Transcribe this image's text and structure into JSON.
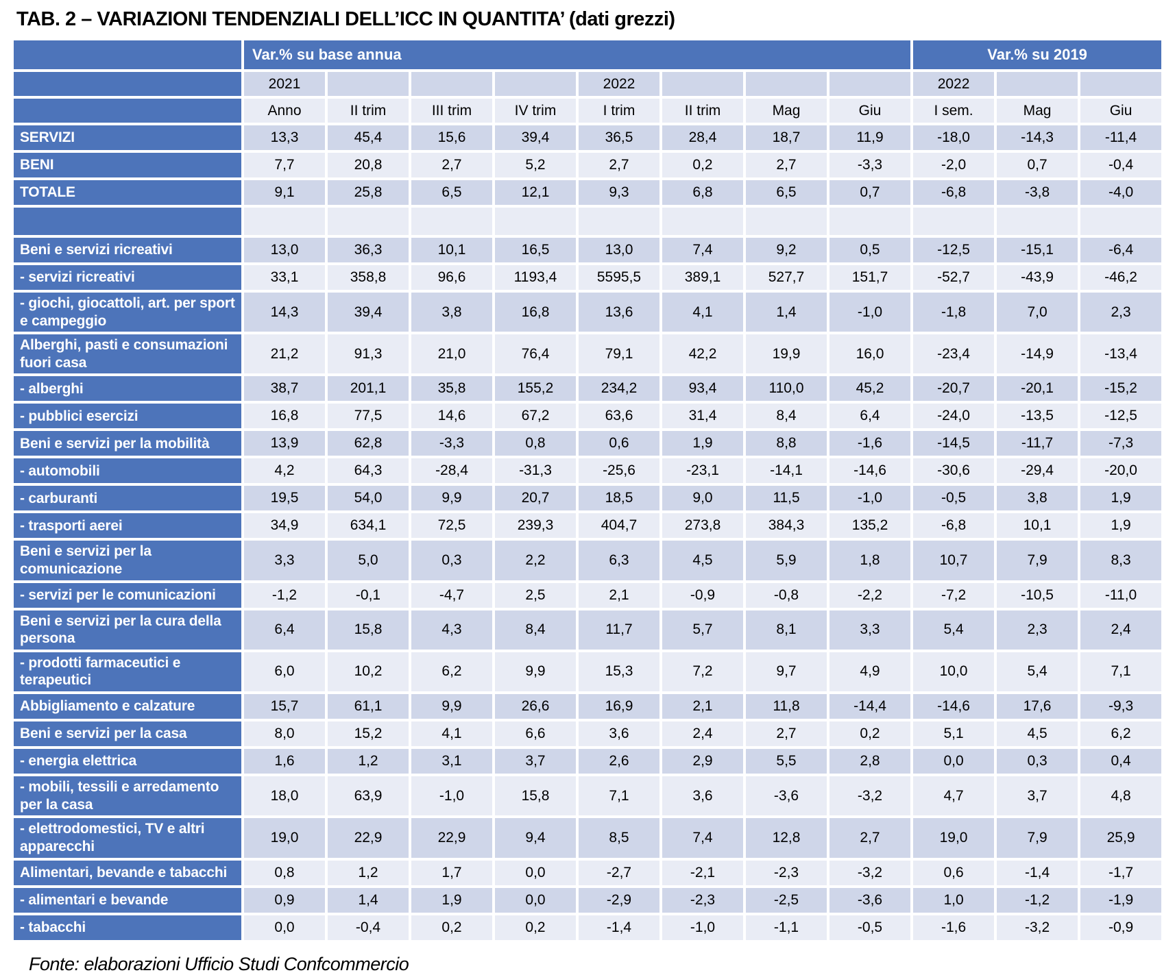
{
  "title": "TAB. 2 – VARIAZIONI TENDENZIALI DELL’ICC IN QUANTITA’ (dati grezzi)",
  "footer": "Fonte: elaborazioni Ufficio Studi Confcommercio",
  "colors": {
    "header_blue": "#4d74ba",
    "band_dark": "#cfd6e9",
    "band_light": "#e9ecf5"
  },
  "table": {
    "group_headers": [
      {
        "label": "Var.% su base annua",
        "span": 8
      },
      {
        "label": "Var.% su 2019",
        "span": 3
      }
    ],
    "year_row": [
      "2021",
      "",
      "",
      "",
      "2022",
      "",
      "",
      "",
      "2022",
      "",
      ""
    ],
    "column_headers": [
      "Anno",
      "II trim",
      "III trim",
      "IV trim",
      "I trim",
      "II trim",
      "Mag",
      "Giu",
      "I sem.",
      "Mag",
      "Giu"
    ],
    "rows": [
      {
        "label": "SERVIZI",
        "values": [
          "13,3",
          "45,4",
          "15,6",
          "39,4",
          "36,5",
          "28,4",
          "18,7",
          "11,9",
          "-18,0",
          "-14,3",
          "-11,4"
        ]
      },
      {
        "label": "BENI",
        "values": [
          "7,7",
          "20,8",
          "2,7",
          "5,2",
          "2,7",
          "0,2",
          "2,7",
          "-3,3",
          "-2,0",
          "0,7",
          "-0,4"
        ]
      },
      {
        "label": "TOTALE",
        "values": [
          "9,1",
          "25,8",
          "6,5",
          "12,1",
          "9,3",
          "6,8",
          "6,5",
          "0,7",
          "-6,8",
          "-3,8",
          "-4,0"
        ]
      },
      {
        "label": "",
        "spacer": true,
        "values": [
          "",
          "",
          "",
          "",
          "",
          "",
          "",
          "",
          "",
          "",
          ""
        ]
      },
      {
        "label": "Beni e servizi ricreativi",
        "values": [
          "13,0",
          "36,3",
          "10,1",
          "16,5",
          "13,0",
          "7,4",
          "9,2",
          "0,5",
          "-12,5",
          "-15,1",
          "-6,4"
        ]
      },
      {
        "label": "- servizi ricreativi",
        "values": [
          "33,1",
          "358,8",
          "96,6",
          "1193,4",
          "5595,5",
          "389,1",
          "527,7",
          "151,7",
          "-52,7",
          "-43,9",
          "-46,2"
        ]
      },
      {
        "label": "- giochi, giocattoli, art. per sport e campeggio",
        "values": [
          "14,3",
          "39,4",
          "3,8",
          "16,8",
          "13,6",
          "4,1",
          "1,4",
          "-1,0",
          "-1,8",
          "7,0",
          "2,3"
        ]
      },
      {
        "label": "Alberghi, pasti e consumazioni fuori casa",
        "values": [
          "21,2",
          "91,3",
          "21,0",
          "76,4",
          "79,1",
          "42,2",
          "19,9",
          "16,0",
          "-23,4",
          "-14,9",
          "-13,4"
        ]
      },
      {
        "label": "- alberghi",
        "values": [
          "38,7",
          "201,1",
          "35,8",
          "155,2",
          "234,2",
          "93,4",
          "110,0",
          "45,2",
          "-20,7",
          "-20,1",
          "-15,2"
        ]
      },
      {
        "label": "- pubblici esercizi",
        "values": [
          "16,8",
          "77,5",
          "14,6",
          "67,2",
          "63,6",
          "31,4",
          "8,4",
          "6,4",
          "-24,0",
          "-13,5",
          "-12,5"
        ]
      },
      {
        "label": "Beni e servizi per la mobilità",
        "values": [
          "13,9",
          "62,8",
          "-3,3",
          "0,8",
          "0,6",
          "1,9",
          "8,8",
          "-1,6",
          "-14,5",
          "-11,7",
          "-7,3"
        ]
      },
      {
        "label": "- automobili",
        "values": [
          "4,2",
          "64,3",
          "-28,4",
          "-31,3",
          "-25,6",
          "-23,1",
          "-14,1",
          "-14,6",
          "-30,6",
          "-29,4",
          "-20,0"
        ]
      },
      {
        "label": "- carburanti",
        "values": [
          "19,5",
          "54,0",
          "9,9",
          "20,7",
          "18,5",
          "9,0",
          "11,5",
          "-1,0",
          "-0,5",
          "3,8",
          "1,9"
        ]
      },
      {
        "label": "- trasporti aerei",
        "values": [
          "34,9",
          "634,1",
          "72,5",
          "239,3",
          "404,7",
          "273,8",
          "384,3",
          "135,2",
          "-6,8",
          "10,1",
          "1,9"
        ]
      },
      {
        "label": "Beni e servizi per la comunicazione",
        "values": [
          "3,3",
          "5,0",
          "0,3",
          "2,2",
          "6,3",
          "4,5",
          "5,9",
          "1,8",
          "10,7",
          "7,9",
          "8,3"
        ]
      },
      {
        "label": "- servizi per le comunicazioni",
        "values": [
          "-1,2",
          "-0,1",
          "-4,7",
          "2,5",
          "2,1",
          "-0,9",
          "-0,8",
          "-2,2",
          "-7,2",
          "-10,5",
          "-11,0"
        ]
      },
      {
        "label": "Beni e servizi per la cura della persona",
        "values": [
          "6,4",
          "15,8",
          "4,3",
          "8,4",
          "11,7",
          "5,7",
          "8,1",
          "3,3",
          "5,4",
          "2,3",
          "2,4"
        ]
      },
      {
        "label": "- prodotti farmaceutici e terapeutici",
        "values": [
          "6,0",
          "10,2",
          "6,2",
          "9,9",
          "15,3",
          "7,2",
          "9,7",
          "4,9",
          "10,0",
          "5,4",
          "7,1"
        ]
      },
      {
        "label": "Abbigliamento e calzature",
        "values": [
          "15,7",
          "61,1",
          "9,9",
          "26,6",
          "16,9",
          "2,1",
          "11,8",
          "-14,4",
          "-14,6",
          "17,6",
          "-9,3"
        ]
      },
      {
        "label": "Beni e servizi per la casa",
        "values": [
          "8,0",
          "15,2",
          "4,1",
          "6,6",
          "3,6",
          "2,4",
          "2,7",
          "0,2",
          "5,1",
          "4,5",
          "6,2"
        ]
      },
      {
        "label": "- energia elettrica",
        "values": [
          "1,6",
          "1,2",
          "3,1",
          "3,7",
          "2,6",
          "2,9",
          "5,5",
          "2,8",
          "0,0",
          "0,3",
          "0,4"
        ]
      },
      {
        "label": "- mobili, tessili e arredamento per la casa",
        "values": [
          "18,0",
          "63,9",
          "-1,0",
          "15,8",
          "7,1",
          "3,6",
          "-3,6",
          "-3,2",
          "4,7",
          "3,7",
          "4,8"
        ]
      },
      {
        "label": "- elettrodomestici, TV e altri apparecchi",
        "values": [
          "19,0",
          "22,9",
          "22,9",
          "9,4",
          "8,5",
          "7,4",
          "12,8",
          "2,7",
          "19,0",
          "7,9",
          "25,9"
        ]
      },
      {
        "label": "Alimentari, bevande e tabacchi",
        "values": [
          "0,8",
          "1,2",
          "1,7",
          "0,0",
          "-2,7",
          "-2,1",
          "-2,3",
          "-3,2",
          "0,6",
          "-1,4",
          "-1,7"
        ]
      },
      {
        "label": "- alimentari e bevande",
        "values": [
          "0,9",
          "1,4",
          "1,9",
          "0,0",
          "-2,9",
          "-2,3",
          "-2,5",
          "-3,6",
          "1,0",
          "-1,2",
          "-1,9"
        ]
      },
      {
        "label": "- tabacchi",
        "values": [
          "0,0",
          "-0,4",
          "0,2",
          "0,2",
          "-1,4",
          "-1,0",
          "-1,1",
          "-0,5",
          "-1,6",
          "-3,2",
          "-0,9"
        ]
      }
    ]
  }
}
